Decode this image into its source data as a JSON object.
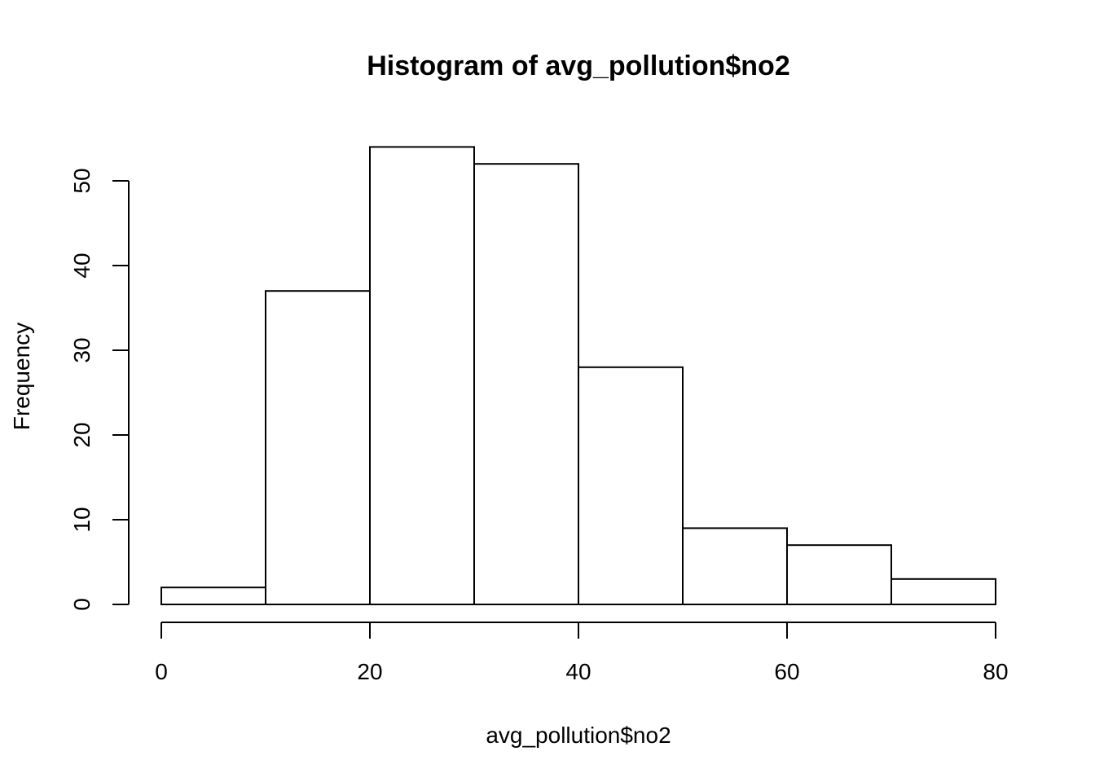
{
  "chart_data": {
    "type": "bar",
    "title": "Histogram of avg_pollution$no2",
    "xlabel": "avg_pollution$no2",
    "ylabel": "Frequency",
    "bins": [
      {
        "start": 0,
        "end": 10,
        "count": 2
      },
      {
        "start": 10,
        "end": 20,
        "count": 37
      },
      {
        "start": 20,
        "end": 30,
        "count": 54
      },
      {
        "start": 30,
        "end": 40,
        "count": 52
      },
      {
        "start": 40,
        "end": 50,
        "count": 28
      },
      {
        "start": 50,
        "end": 60,
        "count": 9
      },
      {
        "start": 60,
        "end": 70,
        "count": 7
      },
      {
        "start": 70,
        "end": 80,
        "count": 3
      }
    ],
    "xlim": [
      0,
      80
    ],
    "ylim": [
      0,
      50
    ],
    "xticks": [
      "0",
      "20",
      "40",
      "60",
      "80"
    ],
    "yticks": [
      "0",
      "10",
      "20",
      "30",
      "40",
      "50"
    ],
    "grid": false,
    "colors": {
      "bar_fill": "#ffffff",
      "bar_stroke": "#000000"
    }
  }
}
